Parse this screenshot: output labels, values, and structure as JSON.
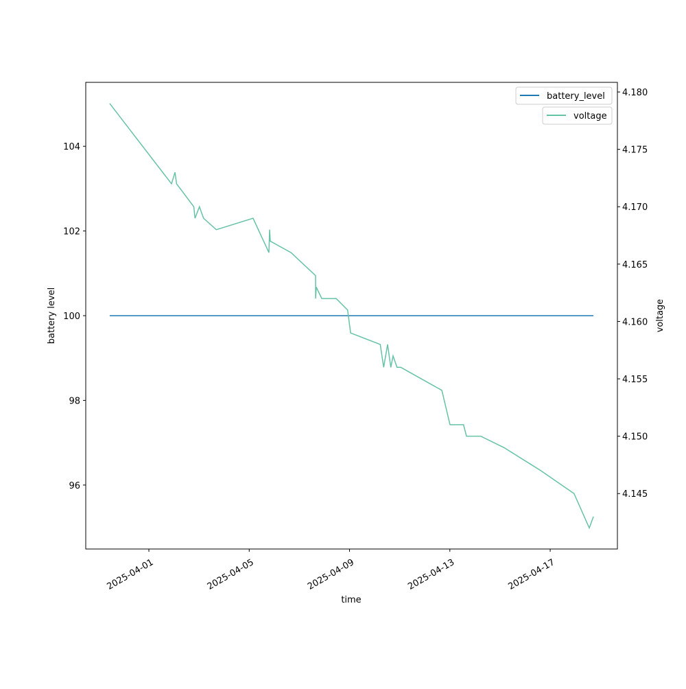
{
  "chart_data": {
    "type": "line",
    "title": "",
    "xlabel": "time",
    "ylabel_left": "battery level",
    "ylabel_right": "voltage",
    "xlim": [
      "2025-03-29 11:36",
      "2025-04-19 16:18"
    ],
    "ylim_left": [
      94.49,
      105.51
    ],
    "ylim_right": [
      4.14017,
      4.18084
    ],
    "x_ticks": [
      "2025-04-01",
      "2025-04-05",
      "2025-04-09",
      "2025-04-13",
      "2025-04-17"
    ],
    "y_ticks_left": [
      96,
      98,
      100,
      102,
      104
    ],
    "y_ticks_right": [
      "4.145",
      "4.150",
      "4.155",
      "4.160",
      "4.165",
      "4.170",
      "4.175",
      "4.180"
    ],
    "grid": false,
    "legends": [
      {
        "placement": "top-right",
        "entries": [
          {
            "label": "battery_level",
            "color": "#1f77b4"
          }
        ]
      },
      {
        "placement": "top-right",
        "entries": [
          {
            "label": "voltage",
            "color": "#66c2a5"
          }
        ]
      }
    ],
    "series": [
      {
        "name": "battery_level",
        "axis": "left",
        "color": "#1f77b4",
        "points": [
          [
            "2025-03-30 10:30",
            100
          ],
          [
            "2025-04-18 17:25",
            100
          ]
        ]
      },
      {
        "name": "voltage",
        "axis": "right",
        "color": "#66c2a5",
        "points": [
          [
            "2025-03-30 10:30",
            4.179
          ],
          [
            "2025-04-01 21:40",
            4.172
          ],
          [
            "2025-04-02 01:00",
            4.173
          ],
          [
            "2025-04-02 02:30",
            4.172
          ],
          [
            "2025-04-02 19:00",
            4.17
          ],
          [
            "2025-04-02 20:10",
            4.169
          ],
          [
            "2025-04-03 00:20",
            4.17
          ],
          [
            "2025-04-03 04:20",
            4.169
          ],
          [
            "2025-04-03 16:30",
            4.168
          ],
          [
            "2025-04-05 03:40",
            4.169
          ],
          [
            "2025-04-05 18:50",
            4.166
          ],
          [
            "2025-04-05 19:30",
            4.168
          ],
          [
            "2025-04-05 20:10",
            4.167
          ],
          [
            "2025-04-06 16:00",
            4.166
          ],
          [
            "2025-04-07 15:30",
            4.164
          ],
          [
            "2025-04-07 15:35",
            4.162
          ],
          [
            "2025-04-07 16:10",
            4.163
          ],
          [
            "2025-04-07 21:25",
            4.162
          ],
          [
            "2025-04-08 11:10",
            4.162
          ],
          [
            "2025-04-08 22:10",
            4.161
          ],
          [
            "2025-04-09 01:00",
            4.159
          ],
          [
            "2025-04-10 05:25",
            4.158
          ],
          [
            "2025-04-10 08:40",
            4.156
          ],
          [
            "2025-04-10 12:25",
            4.158
          ],
          [
            "2025-04-10 15:30",
            4.156
          ],
          [
            "2025-04-10 17:40",
            4.157
          ],
          [
            "2025-04-10 21:25",
            4.156
          ],
          [
            "2025-04-11 01:05",
            4.156
          ],
          [
            "2025-04-12 16:20",
            4.154
          ],
          [
            "2025-04-13 00:10",
            4.151
          ],
          [
            "2025-04-13 13:05",
            4.151
          ],
          [
            "2025-04-13 15:55",
            4.15
          ],
          [
            "2025-04-14 05:30",
            4.15
          ],
          [
            "2025-04-15 04:00",
            4.149
          ],
          [
            "2025-04-16 15:00",
            4.147
          ],
          [
            "2025-04-17 22:50",
            4.145
          ],
          [
            "2025-04-18 13:25",
            4.142
          ],
          [
            "2025-04-18 17:25",
            4.143
          ]
        ]
      }
    ]
  }
}
